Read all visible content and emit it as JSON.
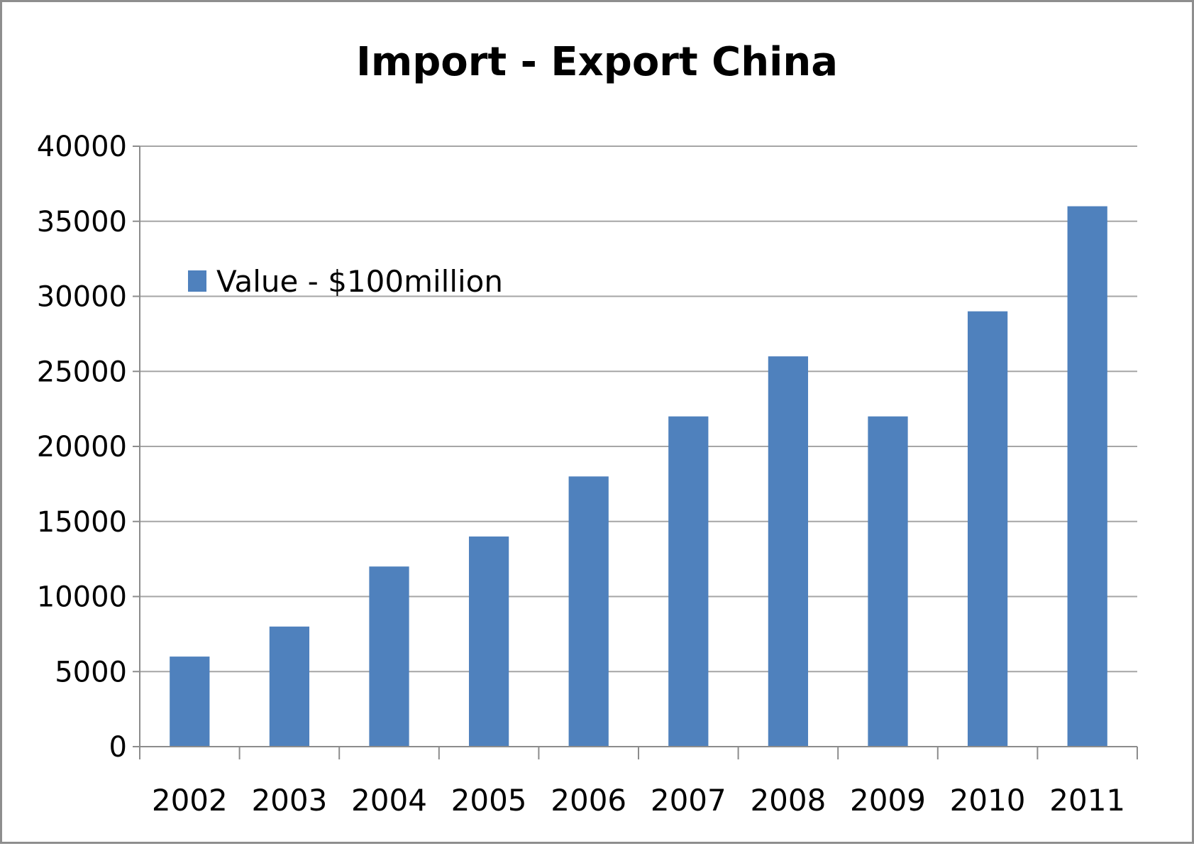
{
  "chart_data": {
    "type": "bar",
    "title": "Import - Export China",
    "xlabel": "",
    "ylabel": "",
    "categories": [
      "2002",
      "2003",
      "2004",
      "2005",
      "2006",
      "2007",
      "2008",
      "2009",
      "2010",
      "2011"
    ],
    "series": [
      {
        "name": "Value - $100million",
        "values": [
          6000,
          8000,
          12000,
          14000,
          18000,
          22000,
          26000,
          22000,
          29000,
          36000
        ]
      }
    ],
    "ylim": [
      0,
      40000
    ],
    "y_ticks": [
      "0",
      "5000",
      "10000",
      "15000",
      "20000",
      "25000",
      "30000",
      "35000",
      "40000"
    ],
    "grid": true,
    "legend_position": "top-left",
    "colors": {
      "bar": "#4f81bd",
      "grid": "#a6a6a6",
      "axis": "#8c8c8c"
    }
  }
}
